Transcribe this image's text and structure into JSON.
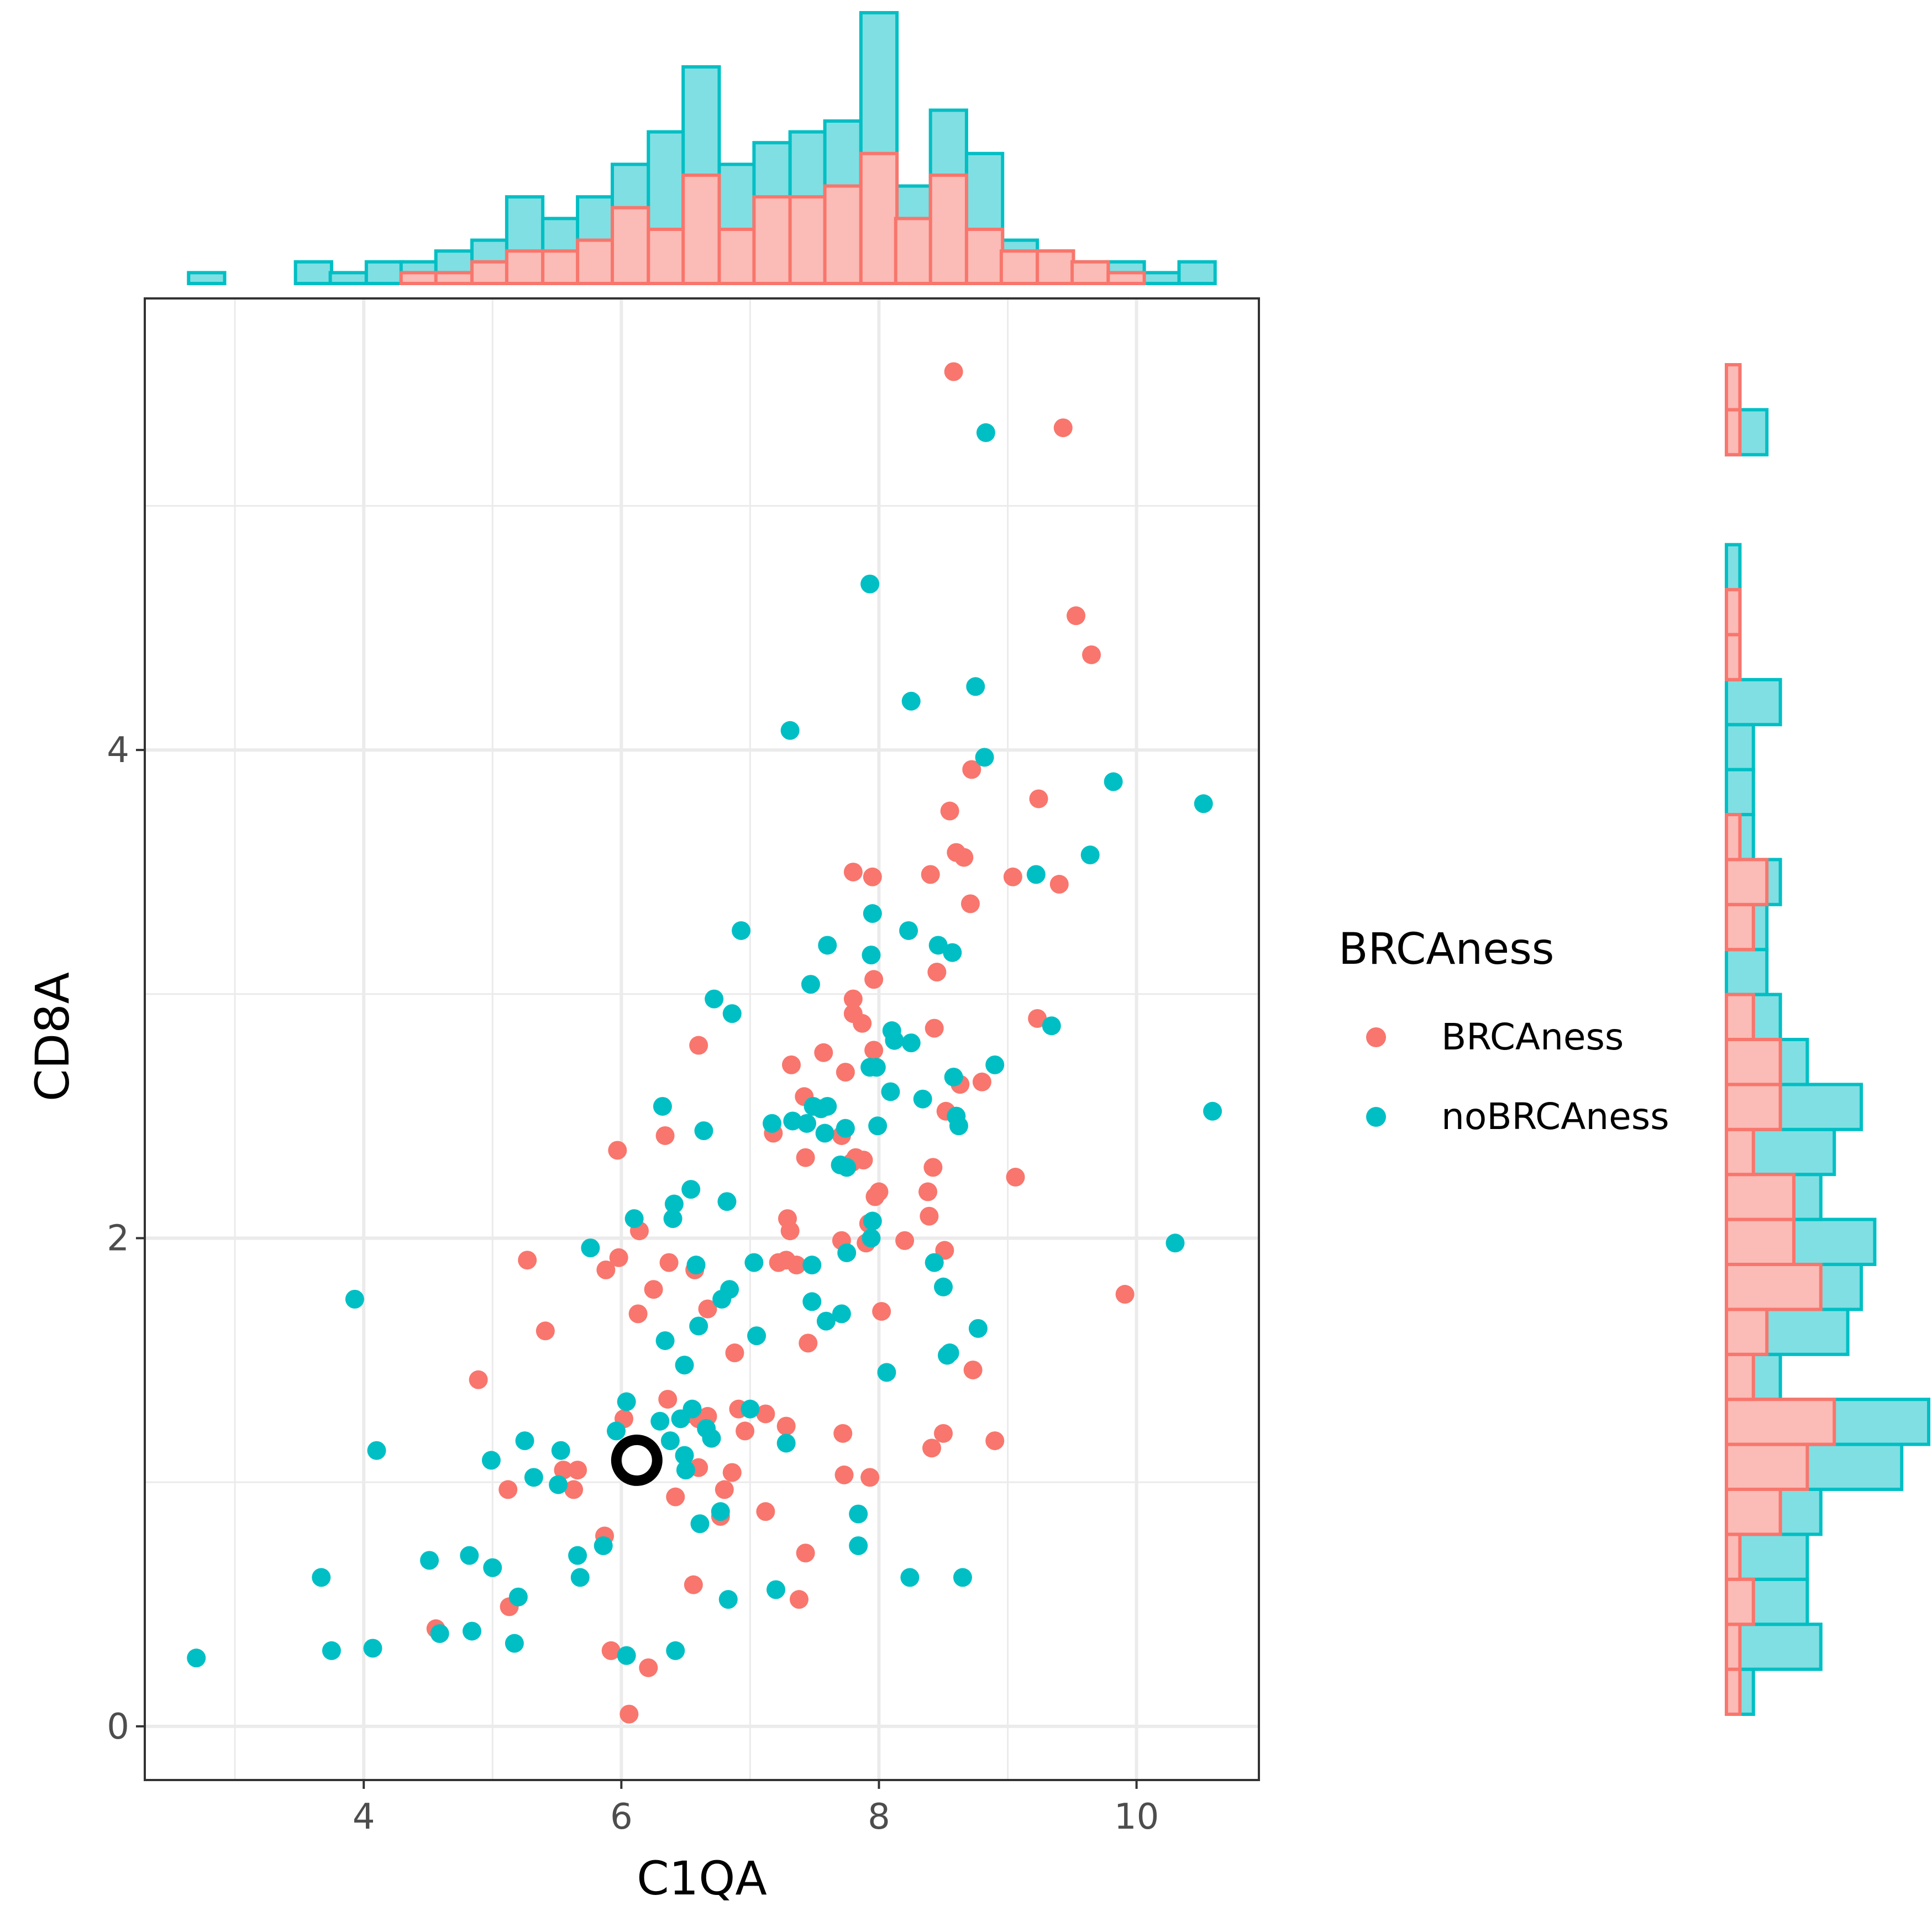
{
  "chart_data": {
    "type": "scatter",
    "title": "",
    "xlabel": "C1QA",
    "ylabel": "CD8A",
    "xlim": [
      2.3,
      10.95
    ],
    "ylim": [
      -0.22,
      5.85
    ],
    "x_ticks": [
      4,
      6,
      8,
      10
    ],
    "y_ticks": [
      0,
      2,
      4
    ],
    "grid": true,
    "legend": {
      "title": "BRCAness",
      "position": "right",
      "entries": [
        "BRCAness",
        "noBRCAness"
      ]
    },
    "colors": {
      "BRCAness": "#F8766D",
      "noBRCAness": "#00BFC4",
      "BRCAness_fill": "#FBBBB6",
      "noBRCAness_fill": "#80DFE2",
      "highlight": "#000000"
    },
    "highlight_point": {
      "x": 6.12,
      "y": 1.09
    },
    "series": [
      {
        "name": "BRCAness",
        "points": [
          [
            8.58,
            5.55
          ],
          [
            9.43,
            5.32
          ],
          [
            9.53,
            4.55
          ],
          [
            9.65,
            4.39
          ],
          [
            8.72,
            3.92
          ],
          [
            9.24,
            3.8
          ],
          [
            8.55,
            3.75
          ],
          [
            8.6,
            3.58
          ],
          [
            8.66,
            3.56
          ],
          [
            7.8,
            3.5
          ],
          [
            7.95,
            3.48
          ],
          [
            8.4,
            3.49
          ],
          [
            9.04,
            3.48
          ],
          [
            9.4,
            3.45
          ],
          [
            8.71,
            3.37
          ],
          [
            7.96,
            3.06
          ],
          [
            8.45,
            3.09
          ],
          [
            7.8,
            2.98
          ],
          [
            7.8,
            2.92
          ],
          [
            7.87,
            2.88
          ],
          [
            8.43,
            2.86
          ],
          [
            9.23,
            2.9
          ],
          [
            6.6,
            2.79
          ],
          [
            7.57,
            2.76
          ],
          [
            7.96,
            2.77
          ],
          [
            7.32,
            2.71
          ],
          [
            7.74,
            2.68
          ],
          [
            8.8,
            2.64
          ],
          [
            8.63,
            2.63
          ],
          [
            7.42,
            2.58
          ],
          [
            8.52,
            2.52
          ],
          [
            7.18,
            2.43
          ],
          [
            6.34,
            2.42
          ],
          [
            7.71,
            2.42
          ],
          [
            5.97,
            2.36
          ],
          [
            7.43,
            2.33
          ],
          [
            7.82,
            2.33
          ],
          [
            7.88,
            2.32
          ],
          [
            7.79,
            2.31
          ],
          [
            8.42,
            2.29
          ],
          [
            9.06,
            2.25
          ],
          [
            8.38,
            2.19
          ],
          [
            8.0,
            2.19
          ],
          [
            7.97,
            2.17
          ],
          [
            7.29,
            2.08
          ],
          [
            8.39,
            2.09
          ],
          [
            7.31,
            2.03
          ],
          [
            6.14,
            2.03
          ],
          [
            7.71,
            1.99
          ],
          [
            8.2,
            1.99
          ],
          [
            7.9,
            1.98
          ],
          [
            7.92,
            2.06
          ],
          [
            8.51,
            1.95
          ],
          [
            5.98,
            1.92
          ],
          [
            7.28,
            1.91
          ],
          [
            5.27,
            1.91
          ],
          [
            6.37,
            1.9
          ],
          [
            7.22,
            1.9
          ],
          [
            7.36,
            1.89
          ],
          [
            5.88,
            1.87
          ],
          [
            6.57,
            1.87
          ],
          [
            6.25,
            1.79
          ],
          [
            9.91,
            1.77
          ],
          [
            6.67,
            1.71
          ],
          [
            8.02,
            1.7
          ],
          [
            6.13,
            1.69
          ],
          [
            5.41,
            1.62
          ],
          [
            7.45,
            1.57
          ],
          [
            6.88,
            1.53
          ],
          [
            8.73,
            1.46
          ],
          [
            4.89,
            1.42
          ],
          [
            6.36,
            1.34
          ],
          [
            6.54,
            1.28
          ],
          [
            6.6,
            1.26
          ],
          [
            6.67,
            1.27
          ],
          [
            6.91,
            1.3
          ],
          [
            7.12,
            1.28
          ],
          [
            7.28,
            1.23
          ],
          [
            6.02,
            1.26
          ],
          [
            6.96,
            1.21
          ],
          [
            7.72,
            1.2
          ],
          [
            8.5,
            1.2
          ],
          [
            8.41,
            1.14
          ],
          [
            8.9,
            1.17
          ],
          [
            5.66,
            1.05
          ],
          [
            5.55,
            1.05
          ],
          [
            6.6,
            1.06
          ],
          [
            6.86,
            1.04
          ],
          [
            7.73,
            1.03
          ],
          [
            7.93,
            1.02
          ],
          [
            5.12,
            0.97
          ],
          [
            5.63,
            0.97
          ],
          [
            6.42,
            0.94
          ],
          [
            6.8,
            0.97
          ],
          [
            7.12,
            0.88
          ],
          [
            5.87,
            0.78
          ],
          [
            6.77,
            0.86
          ],
          [
            7.43,
            0.71
          ],
          [
            6.56,
            0.58
          ],
          [
            5.13,
            0.49
          ],
          [
            7.38,
            0.52
          ],
          [
            4.56,
            0.4
          ],
          [
            5.92,
            0.31
          ],
          [
            6.21,
            0.24
          ],
          [
            6.06,
            0.05
          ]
        ]
      },
      {
        "name": "noBRCAness",
        "points": [
          [
            8.83,
            5.3
          ],
          [
            7.93,
            4.68
          ],
          [
            8.75,
            4.26
          ],
          [
            8.25,
            4.2
          ],
          [
            7.31,
            4.08
          ],
          [
            8.82,
            3.97
          ],
          [
            9.82,
            3.87
          ],
          [
            10.52,
            3.78
          ],
          [
            9.64,
            3.57
          ],
          [
            9.22,
            3.49
          ],
          [
            6.93,
            3.26
          ],
          [
            7.95,
            3.33
          ],
          [
            8.23,
            3.26
          ],
          [
            8.46,
            3.2
          ],
          [
            8.57,
            3.17
          ],
          [
            7.94,
            3.16
          ],
          [
            7.6,
            3.2
          ],
          [
            7.47,
            3.04
          ],
          [
            6.72,
            2.98
          ],
          [
            6.86,
            2.92
          ],
          [
            9.34,
            2.87
          ],
          [
            8.1,
            2.85
          ],
          [
            8.12,
            2.81
          ],
          [
            8.25,
            2.8
          ],
          [
            7.93,
            2.7
          ],
          [
            7.98,
            2.7
          ],
          [
            8.58,
            2.66
          ],
          [
            8.9,
            2.71
          ],
          [
            8.09,
            2.6
          ],
          [
            8.34,
            2.57
          ],
          [
            7.49,
            2.54
          ],
          [
            7.6,
            2.54
          ],
          [
            7.55,
            2.53
          ],
          [
            6.32,
            2.54
          ],
          [
            8.6,
            2.5
          ],
          [
            8.62,
            2.46
          ],
          [
            7.17,
            2.47
          ],
          [
            7.33,
            2.48
          ],
          [
            7.44,
            2.47
          ],
          [
            7.58,
            2.43
          ],
          [
            7.74,
            2.45
          ],
          [
            7.99,
            2.46
          ],
          [
            6.64,
            2.44
          ],
          [
            10.59,
            2.52
          ],
          [
            7.7,
            2.3
          ],
          [
            7.75,
            2.29
          ],
          [
            6.41,
            2.14
          ],
          [
            6.54,
            2.2
          ],
          [
            6.82,
            2.15
          ],
          [
            6.1,
            2.08
          ],
          [
            6.4,
            2.08
          ],
          [
            7.95,
            2.07
          ],
          [
            10.3,
            1.98
          ],
          [
            7.94,
            2.0
          ],
          [
            7.75,
            1.94
          ],
          [
            5.76,
            1.96
          ],
          [
            7.03,
            1.9
          ],
          [
            7.48,
            1.89
          ],
          [
            8.43,
            1.9
          ],
          [
            6.58,
            1.89
          ],
          [
            8.5,
            1.8
          ],
          [
            6.84,
            1.79
          ],
          [
            6.78,
            1.75
          ],
          [
            7.48,
            1.74
          ],
          [
            7.71,
            1.69
          ],
          [
            7.59,
            1.66
          ],
          [
            6.6,
            1.64
          ],
          [
            3.93,
            1.75
          ],
          [
            8.77,
            1.63
          ],
          [
            7.05,
            1.6
          ],
          [
            6.34,
            1.58
          ],
          [
            8.55,
            1.53
          ],
          [
            8.53,
            1.52
          ],
          [
            6.49,
            1.48
          ],
          [
            8.06,
            1.45
          ],
          [
            6.04,
            1.33
          ],
          [
            6.3,
            1.25
          ],
          [
            6.46,
            1.26
          ],
          [
            6.55,
            1.3
          ],
          [
            6.66,
            1.22
          ],
          [
            6.38,
            1.17
          ],
          [
            6.7,
            1.18
          ],
          [
            7.0,
            1.3
          ],
          [
            5.96,
            1.21
          ],
          [
            7.28,
            1.16
          ],
          [
            4.1,
            1.13
          ],
          [
            5.25,
            1.17
          ],
          [
            5.53,
            1.13
          ],
          [
            6.49,
            1.11
          ],
          [
            4.99,
            1.09
          ],
          [
            5.32,
            1.02
          ],
          [
            5.51,
            0.99
          ],
          [
            6.5,
            1.05
          ],
          [
            7.84,
            0.87
          ],
          [
            6.77,
            0.88
          ],
          [
            6.61,
            0.83
          ],
          [
            5.86,
            0.74
          ],
          [
            5.66,
            0.7
          ],
          [
            4.82,
            0.7
          ],
          [
            4.51,
            0.68
          ],
          [
            5.0,
            0.65
          ],
          [
            7.84,
            0.74
          ],
          [
            3.67,
            0.61
          ],
          [
            5.68,
            0.61
          ],
          [
            8.24,
            0.61
          ],
          [
            8.65,
            0.61
          ],
          [
            7.2,
            0.56
          ],
          [
            6.83,
            0.52
          ],
          [
            5.2,
            0.53
          ],
          [
            4.59,
            0.38
          ],
          [
            4.84,
            0.39
          ],
          [
            5.17,
            0.34
          ],
          [
            3.75,
            0.31
          ],
          [
            4.07,
            0.32
          ],
          [
            6.42,
            0.31
          ],
          [
            6.04,
            0.29
          ],
          [
            2.7,
            0.28
          ]
        ]
      }
    ],
    "marginal_x": {
      "bins": [
        2.78,
        3.06,
        3.33,
        3.61,
        3.88,
        4.16,
        4.43,
        4.7,
        4.98,
        5.25,
        5.53,
        5.8,
        6.07,
        6.35,
        6.62,
        6.9,
        7.17,
        7.45,
        7.72,
        8.0,
        8.27,
        8.54,
        8.82,
        9.09,
        9.37,
        9.64,
        9.92,
        10.19,
        10.47
      ],
      "BRCAness_counts": [
        0,
        0,
        0,
        0,
        0,
        0,
        1,
        1,
        2,
        3,
        3,
        4,
        7,
        5,
        10,
        5,
        8,
        8,
        9,
        12,
        6,
        10,
        5,
        3,
        3,
        2,
        1,
        0,
        0
      ],
      "noBRCAness_counts": [
        1,
        0,
        0,
        2,
        1,
        2,
        1,
        2,
        2,
        5,
        3,
        4,
        4,
        9,
        10,
        6,
        5,
        6,
        6,
        13,
        3,
        6,
        7,
        1,
        0,
        0,
        1,
        1,
        2
      ]
    },
    "marginal_y": {
      "bins": [
        0.1,
        0.29,
        0.48,
        0.67,
        0.86,
        1.05,
        1.24,
        1.43,
        1.62,
        1.81,
        2.0,
        2.19,
        2.38,
        2.57,
        2.76,
        2.95,
        3.14,
        3.33,
        3.52,
        3.71,
        3.9,
        4.09,
        4.28,
        4.47,
        4.66,
        4.85,
        5.04,
        5.23,
        5.42,
        5.61
      ],
      "BRCAness_counts": [
        1,
        1,
        2,
        1,
        4,
        6,
        8,
        2,
        3,
        7,
        5,
        5,
        2,
        4,
        4,
        2,
        0,
        2,
        3,
        1,
        0,
        0,
        0,
        1,
        1,
        0,
        0,
        0,
        1,
        1
      ],
      "noBRCAness_counts": [
        1,
        6,
        4,
        5,
        3,
        7,
        7,
        2,
        6,
        3,
        6,
        2,
        6,
        6,
        2,
        2,
        3,
        1,
        1,
        1,
        2,
        2,
        4,
        0,
        0,
        1,
        0,
        0,
        2,
        0
      ]
    }
  }
}
